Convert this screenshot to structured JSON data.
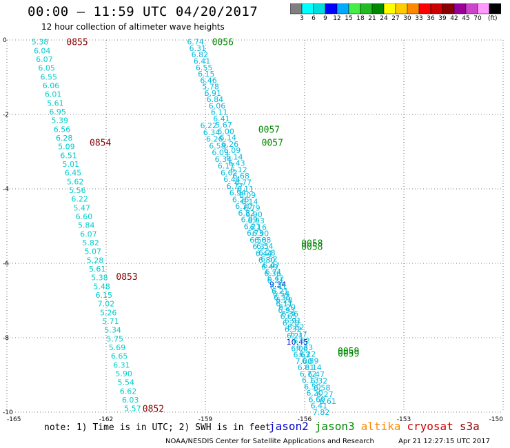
{
  "header": {
    "title": "00:00 – 11:59 UTC 04/20/2017",
    "subtitle": "12 hour collection of altimeter wave heights"
  },
  "colorbar": {
    "colors": [
      "#808080",
      "#00ffff",
      "#00dddd",
      "#0000ff",
      "#00aaff",
      "#44ee44",
      "#22bb22",
      "#008800",
      "#ffff00",
      "#ffcc00",
      "#ff8800",
      "#ff0000",
      "#cc0000",
      "#880000",
      "#990099",
      "#cc44cc",
      "#ff99ff",
      "#000000"
    ],
    "labels": [
      "3",
      "6",
      "9",
      "12",
      "15",
      "18",
      "21",
      "24",
      "27",
      "30",
      "33",
      "36",
      "39",
      "42",
      "45",
      "70"
    ],
    "unit": "(ft)"
  },
  "footer": {
    "note": "note: 1) Time is in UTC; 2) SWH is in feet",
    "credit": "NOAA/NESDIS Center for Satellite Applications and Research",
    "timestamp": "Apr 21 12:27:15 UTC 2017"
  },
  "legend": [
    {
      "name": "jason2",
      "color": "#0000cc"
    },
    {
      "name": "jason3",
      "color": "#008800"
    },
    {
      "name": "altika",
      "color": "#ff8800"
    },
    {
      "name": "cryosat",
      "color": "#cc0000"
    },
    {
      "name": "s3a",
      "color": "#880000"
    }
  ],
  "chart_data": {
    "type": "scatter",
    "title": "00:00 – 11:59 UTC 04/20/2017",
    "subtitle": "12 hour collection of altimeter wave heights",
    "xlim": [
      -165,
      -150
    ],
    "ylim": [
      -10,
      0
    ],
    "x_ticks": [
      "-165",
      "-162",
      "-159",
      "-156",
      "-153",
      "-150"
    ],
    "y_ticks": [
      "0",
      "-2",
      "-4",
      "-6",
      "-8",
      "-10"
    ],
    "grid": true,
    "legend_placement": "bottom",
    "series": [
      {
        "name": "s3a",
        "color": "#00cccc",
        "start": [
          -164.0,
          -0.05
        ],
        "end": [
          -161.2,
          -9.9
        ],
        "values": [
          "5.38",
          "6.04",
          "6.07",
          "6.05",
          "6.55",
          "6.06",
          "6.01",
          "5.61",
          "6.95",
          "5.39",
          "6.56",
          "6.28",
          "5.09",
          "6.51",
          "5.01",
          "6.45",
          "5.62",
          "5.56",
          "6.22",
          "5.47",
          "6.60",
          "5.84",
          "6.07",
          "5.82",
          "5.07",
          "5.28",
          "5.61",
          "5.38",
          "5.48",
          "6.15",
          "7.02",
          "5.26",
          "5.71",
          "5.34",
          "5.75",
          "5.69",
          "6.65",
          "6.31",
          "5.90",
          "5.54",
          "6.62",
          "6.03",
          "5.57"
        ]
      },
      {
        "name": "jason3",
        "color": "#00bbdd",
        "start": [
          -159.3,
          -0.05
        ],
        "end": [
          -155.5,
          -10.0
        ],
        "values": [
          "6.74",
          "6.31",
          "6.82",
          "6.41",
          "6.55",
          "6.15",
          "6.46",
          "5.78",
          "6.91",
          "6.84",
          "6.06",
          "6.11",
          "6.41",
          "5.67",
          "6.00",
          "6.14",
          "6.26",
          "6.09",
          "6.14",
          "6.43",
          "6.12",
          "6.68",
          "6.77",
          "6.11",
          "6.09",
          "6.14",
          "6.79",
          "6.90",
          "6.93",
          "6.16",
          "6.90",
          "6.08",
          "6.54",
          "6.28",
          "6.52",
          "6.47",
          "6.71",
          "6.42",
          "9.34",
          "6.21",
          "6.36",
          "6.11",
          "6.93",
          "6.65",
          "6.28",
          "6.32",
          "6.21",
          "10.45",
          "6.06",
          "6.63",
          "7.00",
          "6.81",
          "6.72",
          "6.13",
          "6.50",
          "6.20",
          "6.69",
          "6.41",
          "7.82"
        ]
      },
      {
        "name": "jason3-b",
        "color": "#00bbdd",
        "start": [
          -158.9,
          -2.3
        ],
        "end": [
          -155.3,
          -9.7
        ],
        "values": [
          "6.22",
          "6.34",
          "6.26",
          "6.58",
          "6.09",
          "6.34",
          "6.17",
          "6.62",
          "6.44",
          "6.77",
          "6.94",
          "6.26",
          "6.30",
          "6.82",
          "6.99",
          "6.21",
          "6.73",
          "6.58",
          "6.31",
          "6.44",
          "6.80",
          "6.49",
          "6.36",
          "6.21",
          "6.41",
          "6.54",
          "6.28",
          "6.20",
          "6.36",
          "6.91",
          "6.62",
          "6.17",
          "6.52",
          "6.33",
          "6.22",
          "6.89",
          "6.14",
          "6.47",
          "6.32",
          "6.58",
          "6.27",
          "6.61"
        ]
      }
    ],
    "highlighted_points": [
      {
        "value": "9.34",
        "color": "#0000cc"
      },
      {
        "value": "10.45",
        "color": "#0000cc"
      }
    ],
    "time_labels": [
      {
        "text": "0855",
        "x": -163.2,
        "y": -0.05,
        "color": "#880000"
      },
      {
        "text": "0854",
        "x": -162.5,
        "y": -2.75,
        "color": "#880000"
      },
      {
        "text": "0853",
        "x": -161.7,
        "y": -6.35,
        "color": "#880000"
      },
      {
        "text": "0852",
        "x": -160.9,
        "y": -9.9,
        "color": "#880000"
      },
      {
        "text": "0056",
        "x": -158.8,
        "y": -0.05,
        "color": "#008800"
      },
      {
        "text": "0057",
        "x": -157.4,
        "y": -2.4,
        "color": "#008800"
      },
      {
        "text": "0057",
        "x": -157.3,
        "y": -2.75,
        "color": "#008800"
      },
      {
        "text": "0058",
        "x": -156.1,
        "y": -5.45,
        "color": "#008800"
      },
      {
        "text": "0058",
        "x": -156.1,
        "y": -5.55,
        "color": "#008800"
      },
      {
        "text": "0059",
        "x": -155.0,
        "y": -8.35,
        "color": "#008800"
      },
      {
        "text": "0059",
        "x": -155.0,
        "y": -8.42,
        "color": "#008800"
      }
    ]
  }
}
